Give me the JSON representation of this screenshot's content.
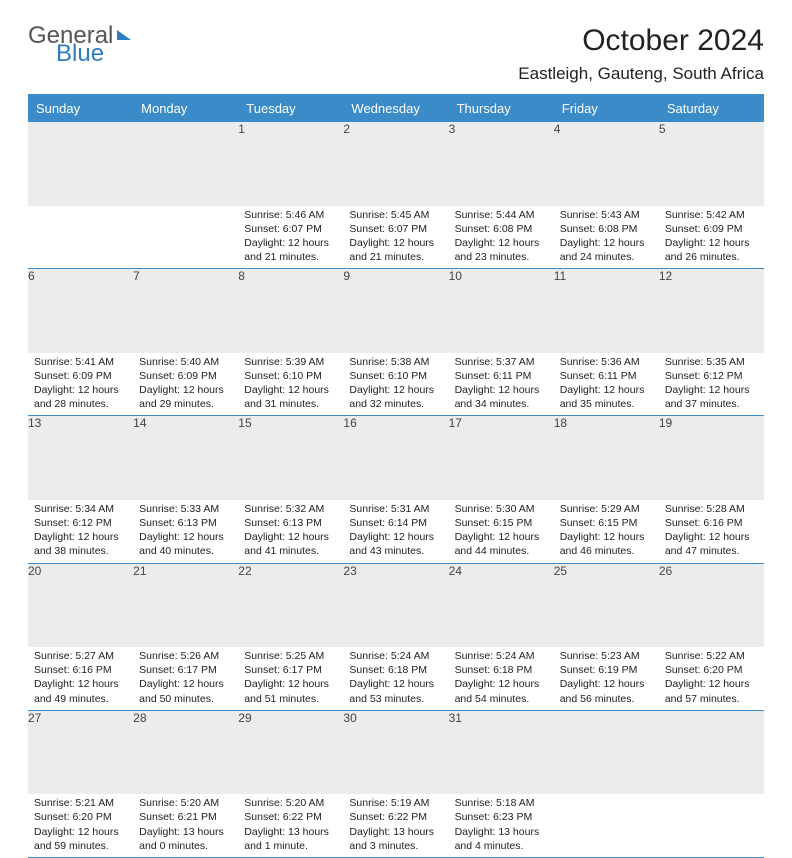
{
  "brand": {
    "part1": "General",
    "part2": "Blue"
  },
  "title": "October 2024",
  "location": "Eastleigh, Gauteng, South Africa",
  "colors": {
    "header_bg": "#3b8bc8",
    "num_bg": "#ececec",
    "rule": "#3b8bc8"
  },
  "weekdays": [
    "Sunday",
    "Monday",
    "Tuesday",
    "Wednesday",
    "Thursday",
    "Friday",
    "Saturday"
  ],
  "weeks": [
    [
      null,
      null,
      {
        "n": "1",
        "sr": "5:46 AM",
        "ss": "6:07 PM",
        "dl": "12 hours and 21 minutes."
      },
      {
        "n": "2",
        "sr": "5:45 AM",
        "ss": "6:07 PM",
        "dl": "12 hours and 21 minutes."
      },
      {
        "n": "3",
        "sr": "5:44 AM",
        "ss": "6:08 PM",
        "dl": "12 hours and 23 minutes."
      },
      {
        "n": "4",
        "sr": "5:43 AM",
        "ss": "6:08 PM",
        "dl": "12 hours and 24 minutes."
      },
      {
        "n": "5",
        "sr": "5:42 AM",
        "ss": "6:09 PM",
        "dl": "12 hours and 26 minutes."
      }
    ],
    [
      {
        "n": "6",
        "sr": "5:41 AM",
        "ss": "6:09 PM",
        "dl": "12 hours and 28 minutes."
      },
      {
        "n": "7",
        "sr": "5:40 AM",
        "ss": "6:09 PM",
        "dl": "12 hours and 29 minutes."
      },
      {
        "n": "8",
        "sr": "5:39 AM",
        "ss": "6:10 PM",
        "dl": "12 hours and 31 minutes."
      },
      {
        "n": "9",
        "sr": "5:38 AM",
        "ss": "6:10 PM",
        "dl": "12 hours and 32 minutes."
      },
      {
        "n": "10",
        "sr": "5:37 AM",
        "ss": "6:11 PM",
        "dl": "12 hours and 34 minutes."
      },
      {
        "n": "11",
        "sr": "5:36 AM",
        "ss": "6:11 PM",
        "dl": "12 hours and 35 minutes."
      },
      {
        "n": "12",
        "sr": "5:35 AM",
        "ss": "6:12 PM",
        "dl": "12 hours and 37 minutes."
      }
    ],
    [
      {
        "n": "13",
        "sr": "5:34 AM",
        "ss": "6:12 PM",
        "dl": "12 hours and 38 minutes."
      },
      {
        "n": "14",
        "sr": "5:33 AM",
        "ss": "6:13 PM",
        "dl": "12 hours and 40 minutes."
      },
      {
        "n": "15",
        "sr": "5:32 AM",
        "ss": "6:13 PM",
        "dl": "12 hours and 41 minutes."
      },
      {
        "n": "16",
        "sr": "5:31 AM",
        "ss": "6:14 PM",
        "dl": "12 hours and 43 minutes."
      },
      {
        "n": "17",
        "sr": "5:30 AM",
        "ss": "6:15 PM",
        "dl": "12 hours and 44 minutes."
      },
      {
        "n": "18",
        "sr": "5:29 AM",
        "ss": "6:15 PM",
        "dl": "12 hours and 46 minutes."
      },
      {
        "n": "19",
        "sr": "5:28 AM",
        "ss": "6:16 PM",
        "dl": "12 hours and 47 minutes."
      }
    ],
    [
      {
        "n": "20",
        "sr": "5:27 AM",
        "ss": "6:16 PM",
        "dl": "12 hours and 49 minutes."
      },
      {
        "n": "21",
        "sr": "5:26 AM",
        "ss": "6:17 PM",
        "dl": "12 hours and 50 minutes."
      },
      {
        "n": "22",
        "sr": "5:25 AM",
        "ss": "6:17 PM",
        "dl": "12 hours and 51 minutes."
      },
      {
        "n": "23",
        "sr": "5:24 AM",
        "ss": "6:18 PM",
        "dl": "12 hours and 53 minutes."
      },
      {
        "n": "24",
        "sr": "5:24 AM",
        "ss": "6:18 PM",
        "dl": "12 hours and 54 minutes."
      },
      {
        "n": "25",
        "sr": "5:23 AM",
        "ss": "6:19 PM",
        "dl": "12 hours and 56 minutes."
      },
      {
        "n": "26",
        "sr": "5:22 AM",
        "ss": "6:20 PM",
        "dl": "12 hours and 57 minutes."
      }
    ],
    [
      {
        "n": "27",
        "sr": "5:21 AM",
        "ss": "6:20 PM",
        "dl": "12 hours and 59 minutes."
      },
      {
        "n": "28",
        "sr": "5:20 AM",
        "ss": "6:21 PM",
        "dl": "13 hours and 0 minutes."
      },
      {
        "n": "29",
        "sr": "5:20 AM",
        "ss": "6:22 PM",
        "dl": "13 hours and 1 minute."
      },
      {
        "n": "30",
        "sr": "5:19 AM",
        "ss": "6:22 PM",
        "dl": "13 hours and 3 minutes."
      },
      {
        "n": "31",
        "sr": "5:18 AM",
        "ss": "6:23 PM",
        "dl": "13 hours and 4 minutes."
      },
      null,
      null
    ]
  ],
  "labels": {
    "sunrise": "Sunrise: ",
    "sunset": "Sunset: ",
    "daylight": "Daylight: "
  }
}
